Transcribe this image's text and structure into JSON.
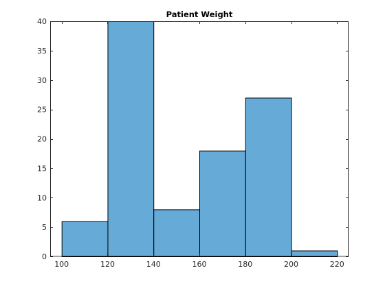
{
  "chart_data": {
    "type": "bar",
    "title": "Patient Weight",
    "xlabel": "",
    "ylabel": "",
    "bin_edges": [
      100,
      120,
      140,
      160,
      180,
      200,
      220
    ],
    "values": [
      6,
      40,
      8,
      18,
      27,
      1
    ],
    "xlim": [
      95,
      225
    ],
    "ylim": [
      0,
      40
    ],
    "x_ticks": [
      100,
      120,
      140,
      160,
      180,
      200,
      220
    ],
    "y_ticks": [
      0,
      5,
      10,
      15,
      20,
      25,
      30,
      35,
      40
    ],
    "grid": false,
    "bar_color": "#66aad7",
    "edge_color": "#000000"
  }
}
